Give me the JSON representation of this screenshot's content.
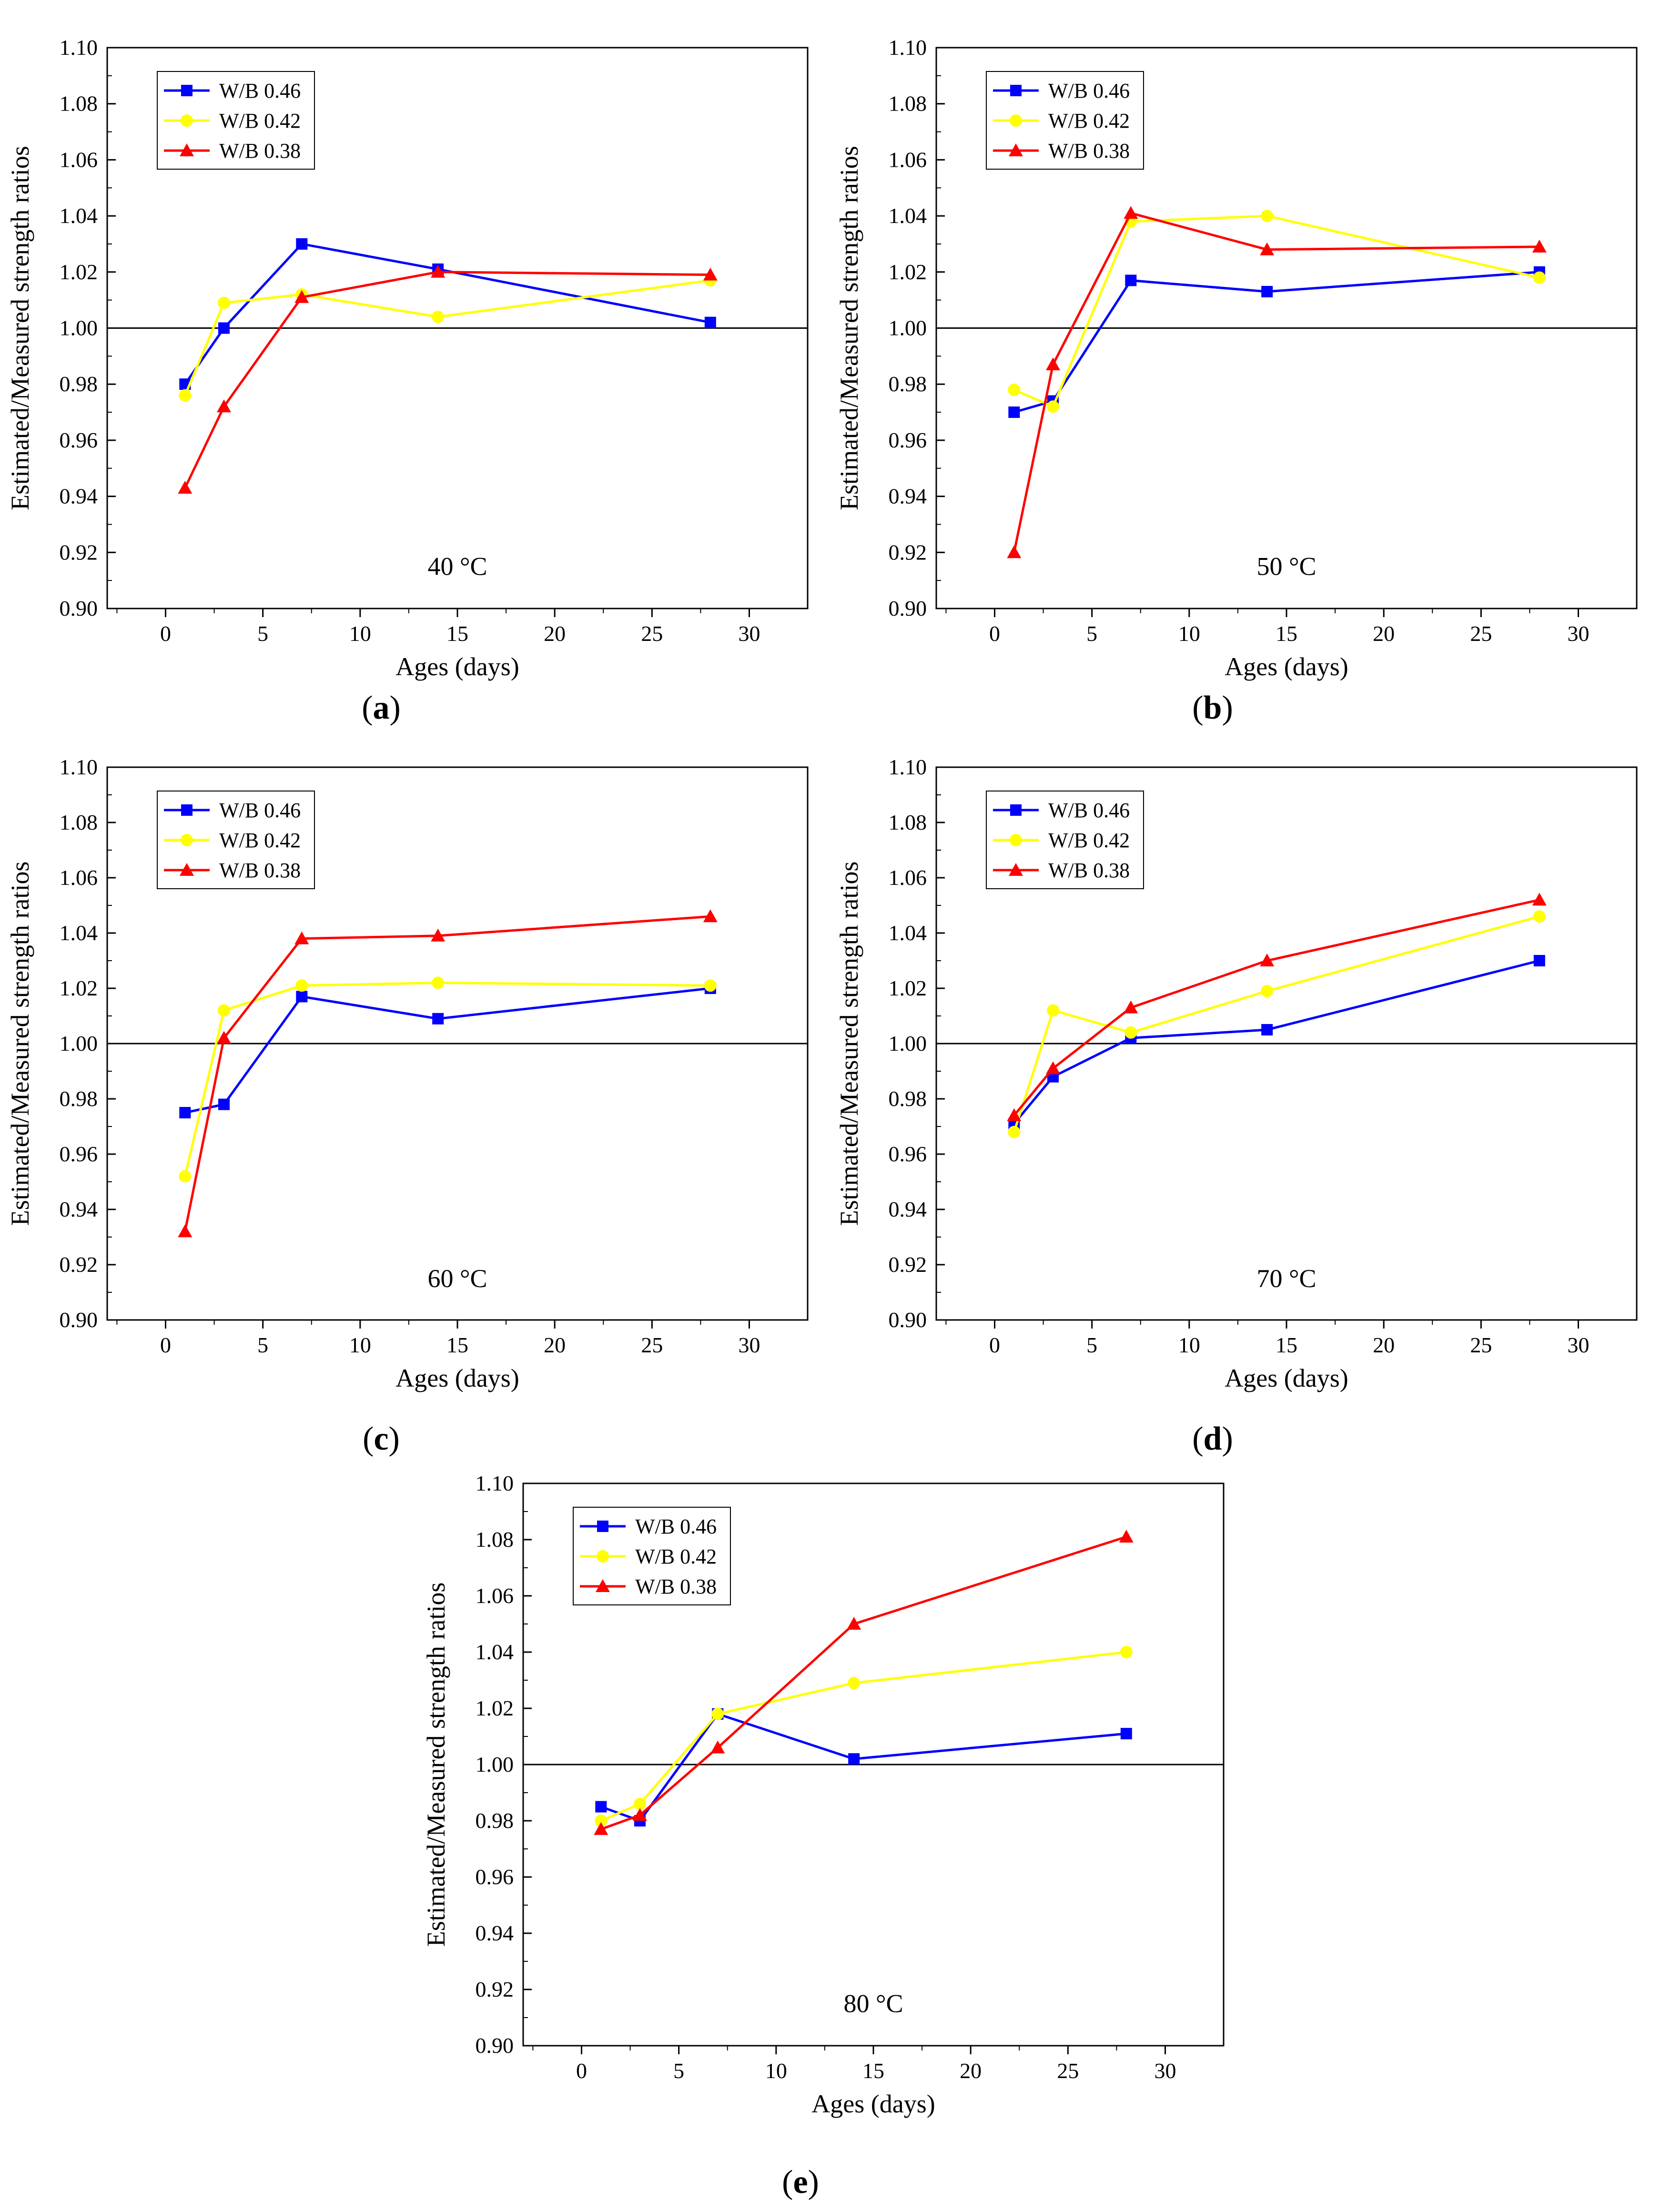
{
  "figure": {
    "panels": [
      {
        "caption_letter": "a",
        "caption_open": "(",
        "caption_close": ")"
      },
      {
        "caption_letter": "b",
        "caption_open": "(",
        "caption_close": ")"
      },
      {
        "caption_letter": "c",
        "caption_open": "(",
        "caption_close": ")"
      },
      {
        "caption_letter": "d",
        "caption_open": "(",
        "caption_close": ")"
      },
      {
        "caption_letter": "e",
        "caption_open": "(",
        "caption_close": ")"
      }
    ]
  },
  "colors": {
    "w046": "#0000ff",
    "w042": "#ffff00",
    "w038": "#ff0000",
    "axis": "#000000"
  },
  "chart_data": [
    {
      "type": "line",
      "panel": "a",
      "annotation": "40 °C",
      "xlabel": "Ages (days)",
      "ylabel": "Estimated/Measured strength ratios",
      "xlim": [
        -3,
        33
      ],
      "ylim": [
        0.9,
        1.1
      ],
      "xticks": [
        "0",
        "5",
        "10",
        "15",
        "20",
        "25",
        "30"
      ],
      "yticks": [
        "0.90",
        "0.92",
        "0.94",
        "0.96",
        "0.98",
        "1.00",
        "1.02",
        "1.04",
        "1.06",
        "1.08",
        "1.10"
      ],
      "reference_line": 1.0,
      "legend_position": "top-left",
      "x": [
        1,
        3,
        7,
        14,
        28
      ],
      "series": [
        {
          "name": "W/B 0.46",
          "marker": "square",
          "color": "#0000ff",
          "values": [
            0.98,
            1.0,
            1.03,
            1.021,
            1.002
          ]
        },
        {
          "name": "W/B 0.42",
          "marker": "circle",
          "color": "#ffff00",
          "values": [
            0.976,
            1.009,
            1.012,
            1.004,
            1.017
          ]
        },
        {
          "name": "W/B 0.38",
          "marker": "triangle",
          "color": "#ff0000",
          "values": [
            0.943,
            0.972,
            1.011,
            1.02,
            1.019
          ]
        }
      ]
    },
    {
      "type": "line",
      "panel": "b",
      "annotation": "50 °C",
      "xlabel": "Ages (days)",
      "ylabel": "Estimated/Measured strength ratios",
      "xlim": [
        -3,
        33
      ],
      "ylim": [
        0.9,
        1.1
      ],
      "xticks": [
        "0",
        "5",
        "10",
        "15",
        "20",
        "25",
        "30"
      ],
      "yticks": [
        "0.90",
        "0.92",
        "0.94",
        "0.96",
        "0.98",
        "1.00",
        "1.02",
        "1.04",
        "1.06",
        "1.08",
        "1.10"
      ],
      "reference_line": 1.0,
      "legend_position": "top-left",
      "x": [
        1,
        3,
        7,
        14,
        28
      ],
      "series": [
        {
          "name": "W/B 0.46",
          "marker": "square",
          "color": "#0000ff",
          "values": [
            0.97,
            0.974,
            1.017,
            1.013,
            1.02
          ]
        },
        {
          "name": "W/B 0.42",
          "marker": "circle",
          "color": "#ffff00",
          "values": [
            0.978,
            0.972,
            1.038,
            1.04,
            1.018
          ]
        },
        {
          "name": "W/B 0.38",
          "marker": "triangle",
          "color": "#ff0000",
          "values": [
            0.92,
            0.987,
            1.041,
            1.028,
            1.029
          ]
        }
      ]
    },
    {
      "type": "line",
      "panel": "c",
      "annotation": "60 °C",
      "xlabel": "Ages (days)",
      "ylabel": "Estimated/Measured strength ratios",
      "xlim": [
        -3,
        33
      ],
      "ylim": [
        0.9,
        1.1
      ],
      "xticks": [
        "0",
        "5",
        "10",
        "15",
        "20",
        "25",
        "30"
      ],
      "yticks": [
        "0.90",
        "0.92",
        "0.94",
        "0.96",
        "0.98",
        "1.00",
        "1.02",
        "1.04",
        "1.06",
        "1.08",
        "1.10"
      ],
      "reference_line": 1.0,
      "legend_position": "top-left",
      "x": [
        1,
        3,
        7,
        14,
        28
      ],
      "series": [
        {
          "name": "W/B 0.46",
          "marker": "square",
          "color": "#0000ff",
          "values": [
            0.975,
            0.978,
            1.017,
            1.009,
            1.02
          ]
        },
        {
          "name": "W/B 0.42",
          "marker": "circle",
          "color": "#ffff00",
          "values": [
            0.952,
            1.012,
            1.021,
            1.022,
            1.021
          ]
        },
        {
          "name": "W/B 0.38",
          "marker": "triangle",
          "color": "#ff0000",
          "values": [
            0.932,
            1.002,
            1.038,
            1.039,
            1.046
          ]
        }
      ]
    },
    {
      "type": "line",
      "panel": "d",
      "annotation": "70 °C",
      "xlabel": "Ages (days)",
      "ylabel": "Estimated/Measured strength ratios",
      "xlim": [
        -3,
        33
      ],
      "ylim": [
        0.9,
        1.1
      ],
      "xticks": [
        "0",
        "5",
        "10",
        "15",
        "20",
        "25",
        "30"
      ],
      "yticks": [
        "0.90",
        "0.92",
        "0.94",
        "0.96",
        "0.98",
        "1.00",
        "1.02",
        "1.04",
        "1.06",
        "1.08",
        "1.10"
      ],
      "reference_line": 1.0,
      "legend_position": "top-left",
      "x": [
        1,
        3,
        7,
        14,
        28
      ],
      "series": [
        {
          "name": "W/B 0.46",
          "marker": "square",
          "color": "#0000ff",
          "values": [
            0.971,
            0.988,
            1.002,
            1.005,
            1.03
          ]
        },
        {
          "name": "W/B 0.42",
          "marker": "circle",
          "color": "#ffff00",
          "values": [
            0.968,
            1.012,
            1.004,
            1.019,
            1.046
          ]
        },
        {
          "name": "W/B 0.38",
          "marker": "triangle",
          "color": "#ff0000",
          "values": [
            0.974,
            0.991,
            1.013,
            1.03,
            1.052
          ]
        }
      ]
    },
    {
      "type": "line",
      "panel": "e",
      "annotation": "80 °C",
      "xlabel": "Ages (days)",
      "ylabel": "Estimated/Measured strength ratios",
      "xlim": [
        -3,
        33
      ],
      "ylim": [
        0.9,
        1.1
      ],
      "xticks": [
        "0",
        "5",
        "10",
        "15",
        "20",
        "25",
        "30"
      ],
      "yticks": [
        "0.90",
        "0.92",
        "0.94",
        "0.96",
        "0.98",
        "1.00",
        "1.02",
        "1.04",
        "1.06",
        "1.08",
        "1.10"
      ],
      "reference_line": 1.0,
      "legend_position": "top-left",
      "x": [
        1,
        3,
        7,
        14,
        28
      ],
      "series": [
        {
          "name": "W/B 0.46",
          "marker": "square",
          "color": "#0000ff",
          "values": [
            0.985,
            0.98,
            1.018,
            1.002,
            1.011
          ]
        },
        {
          "name": "W/B 0.42",
          "marker": "circle",
          "color": "#ffff00",
          "values": [
            0.98,
            0.986,
            1.018,
            1.029,
            1.04
          ]
        },
        {
          "name": "W/B 0.38",
          "marker": "triangle",
          "color": "#ff0000",
          "values": [
            0.977,
            0.982,
            1.006,
            1.05,
            1.081
          ]
        }
      ]
    }
  ]
}
